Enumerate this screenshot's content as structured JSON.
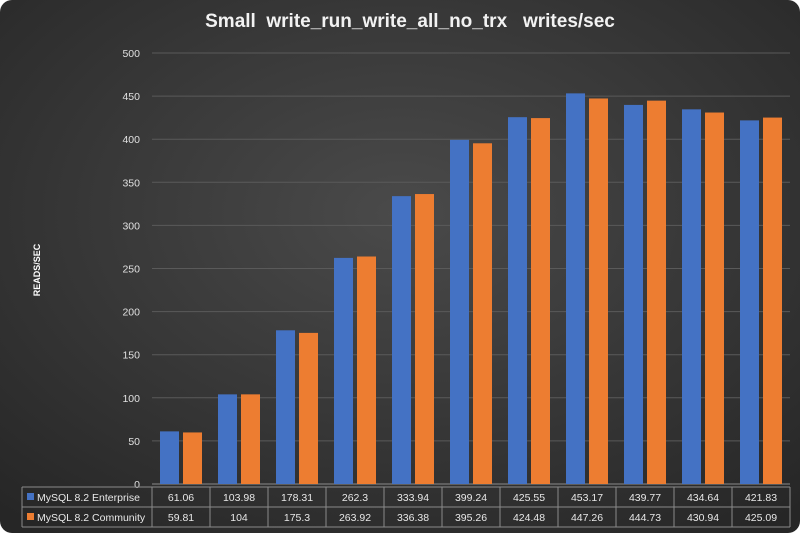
{
  "chart_data": {
    "type": "bar",
    "title": "Small  write_run_write_all_no_trx   writes/sec",
    "xlabel": "",
    "ylabel": "READS/SEC",
    "ylim": [
      0,
      500
    ],
    "yticks": [
      0,
      50,
      100,
      150,
      200,
      250,
      300,
      350,
      400,
      450,
      500
    ],
    "grid": true,
    "legend": "data-table-bottom",
    "categories": [
      "",
      "",
      "",
      "",
      "",
      "",
      "",
      "",
      "",
      "",
      ""
    ],
    "series": [
      {
        "name": "MySQL 8.2 Enterprise",
        "color": "#4472C4",
        "values": [
          61.06,
          103.98,
          178.31,
          262.3,
          333.94,
          399.24,
          425.55,
          453.17,
          439.77,
          434.64,
          421.83
        ],
        "labels": [
          "61.06",
          "103.98",
          "178.31",
          "262.3",
          "333.94",
          "399.24",
          "425.55",
          "453.17",
          "439.77",
          "434.64",
          "421.83"
        ]
      },
      {
        "name": "MySQL 8.2 Community",
        "color": "#ED7D31",
        "values": [
          59.81,
          104,
          175.3,
          263.92,
          336.38,
          395.26,
          424.48,
          447.26,
          444.73,
          430.94,
          425.09
        ],
        "labels": [
          "59.81",
          "104",
          "175.3",
          "263.92",
          "336.38",
          "395.26",
          "424.48",
          "447.26",
          "444.73",
          "430.94",
          "425.09"
        ]
      }
    ]
  }
}
